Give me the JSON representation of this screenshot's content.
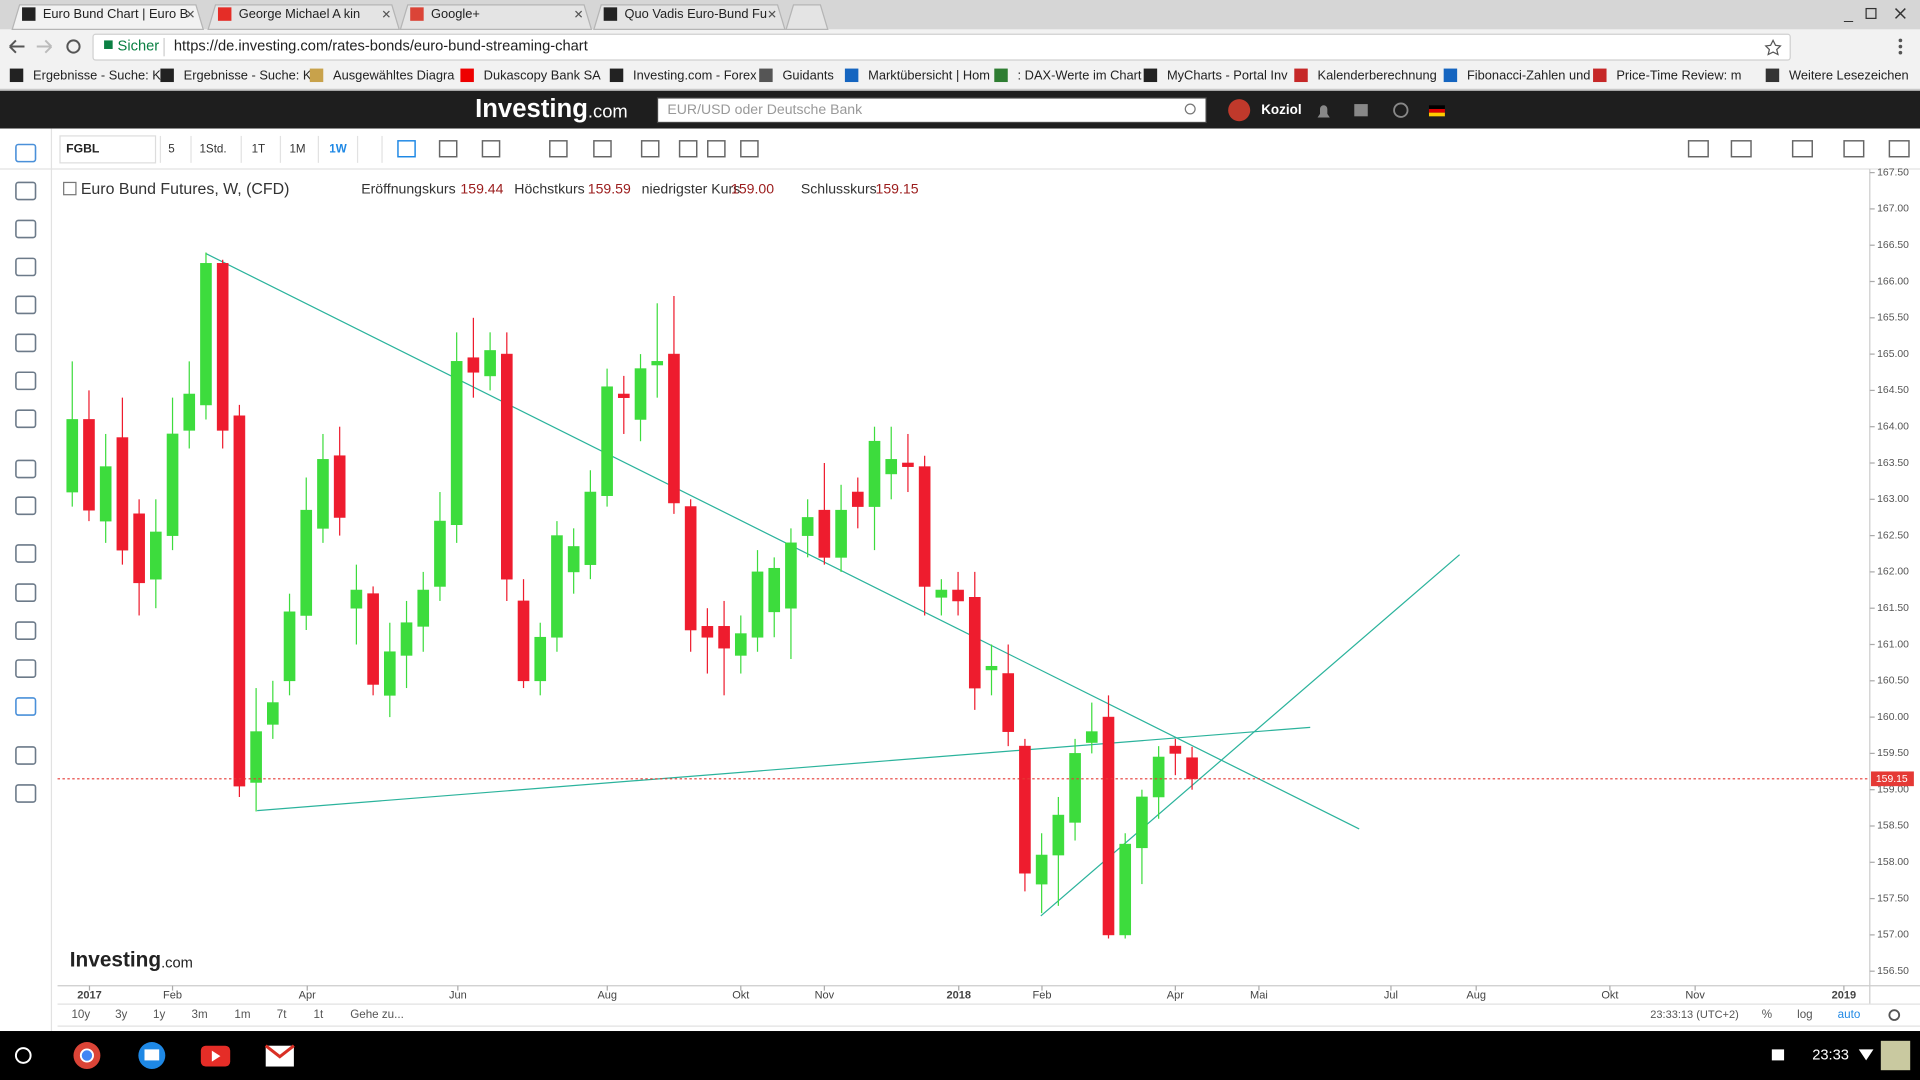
{
  "browser": {
    "tabs": [
      "Euro Bund Chart | Euro B",
      "George Michael A kin",
      "Google+",
      "Quo Vadis Euro-Bund Fu"
    ],
    "secure": "Sicher",
    "url": "https://de.investing.com/rates-bonds/euro-bund-streaming-chart",
    "bookmarks": [
      "Ergebnisse - Suche: K",
      "Ergebnisse - Suche: K",
      "Ausgewähltes Diagra",
      "Dukascopy Bank SA",
      "Investing.com - Forex",
      "Guidants",
      "Marktübersicht | Hom",
      ": DAX-Werte im Chart",
      "MyCharts - Portal Inv",
      "Kalenderberechnung",
      "Fibonacci-Zahlen und",
      "Price-Time Review: m",
      "Weitere Lesezeichen"
    ]
  },
  "site": {
    "logo": "Investing",
    "logo_suffix": ".com",
    "search_placeholder": "EUR/USD oder Deutsche Bank",
    "user": "Koziol"
  },
  "toolbar": {
    "symbol": "FGBL",
    "intervals": [
      "5",
      "1Std.",
      "1T",
      "1M",
      "1W"
    ],
    "active_interval": 4
  },
  "chart": {
    "title": "Euro Bund Futures, W, (CFD)",
    "ohlc_labels": [
      "Eröffnungskurs",
      "Höchstkurs",
      "niedrigster Kurs",
      "Schlusskurs"
    ],
    "ohlc_values": [
      159.44,
      159.59,
      {
        "value": 159,
        "label": "159.00"
      },
      159.15
    ],
    "up_color": "#3ddc3d",
    "down_color": "#ee1c2e",
    "candles": [
      {
        "o": 163.1,
        "h": 164.9,
        "l": 162.9,
        "c": 164.1
      },
      {
        "o": 164.1,
        "h": 164.5,
        "l": 162.7,
        "c": 162.85
      },
      {
        "o": 162.7,
        "h": 163.9,
        "l": 162.4,
        "c": 163.45
      },
      {
        "o": 163.85,
        "h": 164.4,
        "l": 162.1,
        "c": 162.3
      },
      {
        "o": 162.8,
        "h": 163.0,
        "l": 161.4,
        "c": 161.85
      },
      {
        "o": 161.9,
        "h": 163.0,
        "l": 161.5,
        "c": 162.55
      },
      {
        "o": 162.5,
        "h": 164.4,
        "l": 162.3,
        "c": 163.9
      },
      {
        "o": 163.95,
        "h": 164.9,
        "l": 163.7,
        "c": 164.45
      },
      {
        "o": 164.3,
        "h": 166.4,
        "l": 164.1,
        "c": 166.25
      },
      {
        "o": 166.25,
        "h": 166.3,
        "l": 163.7,
        "c": 163.95
      },
      {
        "o": 164.15,
        "h": 164.3,
        "l": 158.9,
        "c": 159.05
      },
      {
        "o": 159.1,
        "h": 160.4,
        "l": 158.7,
        "c": 159.8
      },
      {
        "o": 159.9,
        "h": 160.5,
        "l": 159.7,
        "c": 160.2
      },
      {
        "o": 160.5,
        "h": 161.7,
        "l": 160.3,
        "c": 161.45
      },
      {
        "o": 161.4,
        "h": 163.3,
        "l": 161.2,
        "c": 162.85
      },
      {
        "o": 162.6,
        "h": 163.9,
        "l": 162.4,
        "c": 163.55
      },
      {
        "o": 163.6,
        "h": 164.0,
        "l": 162.5,
        "c": 162.75
      },
      {
        "o": 161.5,
        "h": 162.1,
        "l": 161.0,
        "c": 161.75
      },
      {
        "o": 161.7,
        "h": 161.8,
        "l": 160.3,
        "c": 160.45
      },
      {
        "o": 160.3,
        "h": 161.3,
        "l": 160.0,
        "c": 160.9
      },
      {
        "o": 160.85,
        "h": 161.6,
        "l": 160.4,
        "c": 161.3
      },
      {
        "o": 161.25,
        "h": 162.0,
        "l": 160.9,
        "c": 161.75
      },
      {
        "o": 161.8,
        "h": 163.1,
        "l": 161.6,
        "c": 162.7
      },
      {
        "o": 162.65,
        "h": 165.3,
        "l": 162.4,
        "c": 164.9
      },
      {
        "o": 164.95,
        "h": 165.5,
        "l": 164.4,
        "c": 164.75
      },
      {
        "o": 164.7,
        "h": 165.3,
        "l": 164.5,
        "c": 165.05
      },
      {
        "o": 165.0,
        "h": 165.3,
        "l": 161.6,
        "c": 161.9
      },
      {
        "o": 161.6,
        "h": 161.9,
        "l": 160.4,
        "c": 160.5
      },
      {
        "o": 160.5,
        "h": 161.3,
        "l": 160.3,
        "c": 161.1
      },
      {
        "o": 161.1,
        "h": 162.7,
        "l": 160.9,
        "c": 162.5
      },
      {
        "o": 162.0,
        "h": 162.6,
        "l": 161.7,
        "c": 162.35
      },
      {
        "o": 162.1,
        "h": 163.4,
        "l": 161.9,
        "c": 163.1
      },
      {
        "o": 163.05,
        "h": 164.8,
        "l": 162.9,
        "c": 164.55
      },
      {
        "o": 164.45,
        "h": 164.7,
        "l": 163.9,
        "c": 164.4
      },
      {
        "o": 164.1,
        "h": 165.0,
        "l": 163.8,
        "c": 164.8
      },
      {
        "o": 164.85,
        "h": 165.7,
        "l": 164.4,
        "c": 164.9
      },
      {
        "o": 165.0,
        "h": 165.8,
        "l": 162.8,
        "c": 162.95
      },
      {
        "o": 162.9,
        "h": 163.0,
        "l": 160.9,
        "c": 161.2
      },
      {
        "o": 161.25,
        "h": 161.5,
        "l": 160.6,
        "c": 161.1
      },
      {
        "o": 161.25,
        "h": 161.6,
        "l": 160.3,
        "c": 160.95
      },
      {
        "o": 160.85,
        "h": 161.4,
        "l": 160.6,
        "c": 161.15
      },
      {
        "o": 161.1,
        "h": 162.3,
        "l": 160.9,
        "c": 162.0
      },
      {
        "o": 161.45,
        "h": 162.2,
        "l": 161.1,
        "c": 162.05
      },
      {
        "o": 161.5,
        "h": 162.6,
        "l": 160.8,
        "c": 162.4
      },
      {
        "o": 162.5,
        "h": 163.0,
        "l": 162.2,
        "c": 162.75
      },
      {
        "o": 162.85,
        "h": 163.5,
        "l": 162.1,
        "c": 162.2
      },
      {
        "o": 162.2,
        "h": 163.2,
        "l": 162.0,
        "c": 162.85
      },
      {
        "o": 163.1,
        "h": 163.3,
        "l": 162.6,
        "c": 162.9
      },
      {
        "o": 162.9,
        "h": 164.0,
        "l": 162.3,
        "c": 163.8
      },
      {
        "o": 163.35,
        "h": 164.0,
        "l": 163.0,
        "c": 163.55
      },
      {
        "o": 163.5,
        "h": 163.9,
        "l": 163.1,
        "c": 163.45
      },
      {
        "o": 163.45,
        "h": 163.6,
        "l": 161.4,
        "c": 161.8
      },
      {
        "o": 161.65,
        "h": 161.9,
        "l": 161.4,
        "c": 161.75
      },
      {
        "o": 161.75,
        "h": 162.0,
        "l": 161.4,
        "c": 161.6
      },
      {
        "o": 161.65,
        "h": 162.0,
        "l": 160.1,
        "c": 160.4
      },
      {
        "o": 160.65,
        "h": 161.0,
        "l": 160.3,
        "c": 160.7
      },
      {
        "o": 160.6,
        "h": 161.0,
        "l": 159.6,
        "c": 159.8
      },
      {
        "o": 159.6,
        "h": 159.7,
        "l": 157.6,
        "c": 157.85
      },
      {
        "o": 157.7,
        "h": 158.4,
        "l": 157.3,
        "c": 158.1
      },
      {
        "o": 158.1,
        "h": 158.9,
        "l": 157.4,
        "c": 158.65
      },
      {
        "o": 158.55,
        "h": 159.7,
        "l": 158.3,
        "c": 159.5
      },
      {
        "o": 159.65,
        "h": 160.2,
        "l": 159.5,
        "c": 159.8
      },
      {
        "o": 160.0,
        "h": 160.3,
        "l": 156.95,
        "c": 157.0
      },
      {
        "o": 157.0,
        "h": 158.4,
        "l": 156.95,
        "c": 158.25
      },
      {
        "o": 158.2,
        "h": 159.0,
        "l": 157.7,
        "c": 158.9
      },
      {
        "o": 158.9,
        "h": 159.6,
        "l": 158.6,
        "c": 159.45
      },
      {
        "o": 159.6,
        "h": 159.7,
        "l": 159.2,
        "c": 159.5
      },
      {
        "o": 159.44,
        "h": 159.59,
        "l": 159,
        "c": 159.15
      }
    ],
    "ylim": [
      156.3,
      167.55
    ],
    "yticks": [
      {
        "value": 156.5,
        "label": "156.50"
      },
      {
        "value": 157,
        "label": "157.00"
      },
      {
        "value": 157.5,
        "label": "157.50"
      },
      {
        "value": 158,
        "label": "158.00"
      },
      {
        "value": 158.5,
        "label": "158.50"
      },
      {
        "value": 159,
        "label": "159.00"
      },
      {
        "value": 159.5,
        "label": "159.50"
      },
      {
        "value": 160,
        "label": "160.00"
      },
      {
        "value": 160.5,
        "label": "160.50"
      },
      {
        "value": 161,
        "label": "161.00"
      },
      {
        "value": 161.5,
        "label": "161.50"
      },
      {
        "value": 162,
        "label": "162.00"
      },
      {
        "value": 162.5,
        "label": "162.50"
      },
      {
        "value": 163,
        "label": "163.00"
      },
      {
        "value": 163.5,
        "label": "163.50"
      },
      {
        "value": 164,
        "label": "164.00"
      },
      {
        "value": 164.5,
        "label": "164.50"
      },
      {
        "value": 165,
        "label": "165.00"
      },
      {
        "value": 165.5,
        "label": "165.50"
      },
      {
        "value": 166,
        "label": "166.00"
      },
      {
        "value": 166.5,
        "label": "166.50"
      },
      {
        "value": 167,
        "label": "167.00"
      },
      {
        "value": 167.5,
        "label": "167.50"
      }
    ],
    "last_price": 159.15,
    "xlim": [
      -0.88,
      107.55
    ],
    "xticks": [
      {
        "value": 1.03,
        "label": "2017"
      },
      {
        "value": 6.0,
        "label": "Feb"
      },
      {
        "value": 14.06,
        "label": "Apr"
      },
      {
        "value": 23.07,
        "label": "Jun"
      },
      {
        "value": 32.01,
        "label": "Aug"
      },
      {
        "value": 40.0,
        "label": "Okt"
      },
      {
        "value": 45.0,
        "label": "Nov"
      },
      {
        "value": 53.04,
        "label": "2018"
      },
      {
        "value": 58.02,
        "label": "Feb"
      },
      {
        "value": 66.0,
        "label": "Apr"
      },
      {
        "value": 71.0,
        "label": "Mai"
      },
      {
        "value": 78.9,
        "label": "Jul"
      },
      {
        "value": 84.0,
        "label": "Aug"
      },
      {
        "value": 92.0,
        "label": "Okt"
      },
      {
        "value": 97.1,
        "label": "Nov"
      },
      {
        "value": 106.0,
        "label": "2019"
      }
    ],
    "watermark": "Investing",
    "watermark_suffix": ".com"
  },
  "bottom_bar": {
    "ranges": [
      "10y",
      "3y",
      "1y",
      "3m",
      "1m",
      "7t",
      "1t"
    ],
    "goto": "Gehe zu...",
    "time": "23:33:13 (UTC+2)",
    "options": [
      "%",
      "log",
      "auto"
    ]
  },
  "taskbar": {
    "clock": "23:33"
  }
}
